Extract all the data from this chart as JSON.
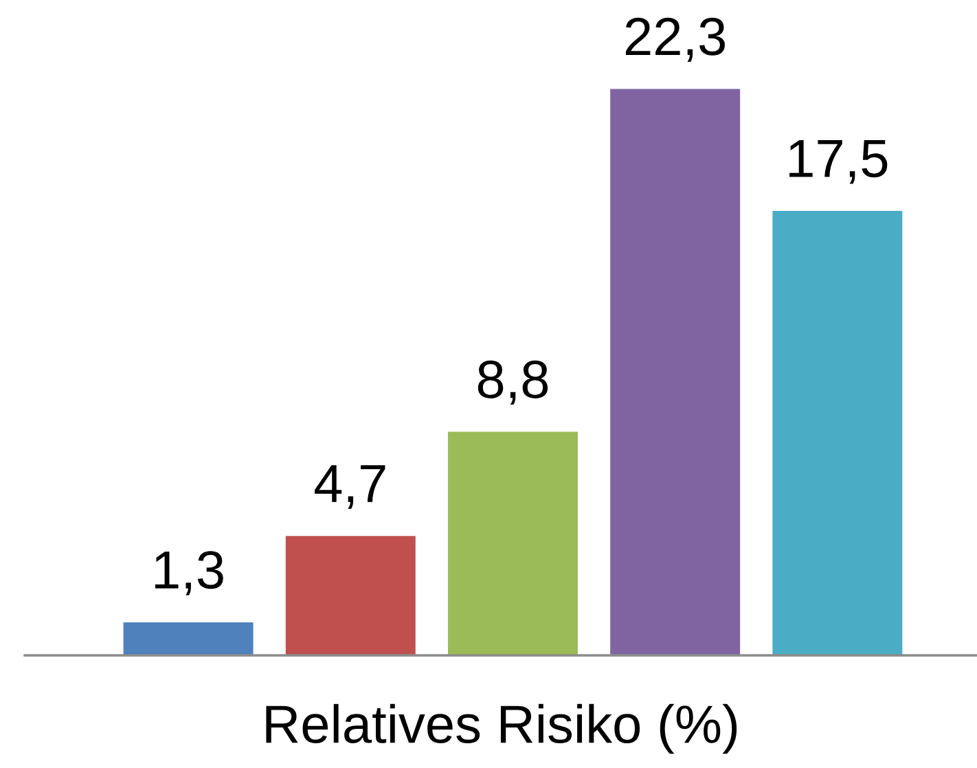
{
  "chart_data": {
    "type": "bar",
    "xlabel": "Relatives Risiko (%)",
    "categories": [
      null,
      null,
      null,
      null,
      null
    ],
    "values": [
      1.3,
      4.7,
      8.8,
      22.3,
      17.5
    ],
    "colors": [
      "#4f81bd",
      "#c0504d",
      "#9bbb59",
      "#8064a2",
      "#4bacc6"
    ],
    "value_labels": [
      "1,3",
      "4,7",
      "8,8",
      "22,3",
      "17,5"
    ],
    "grid": false,
    "legend": false
  }
}
